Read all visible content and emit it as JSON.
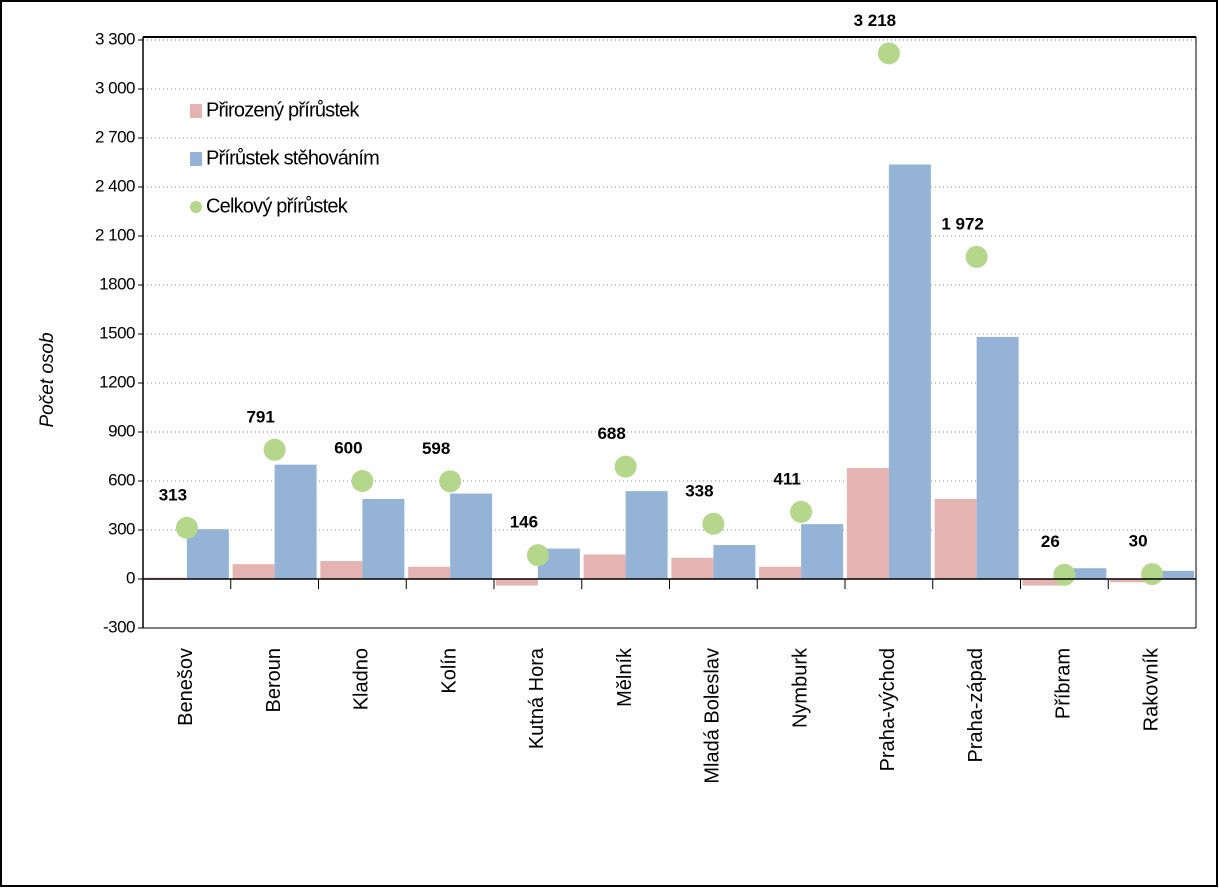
{
  "chart_data": {
    "type": "bar",
    "y_label": "Počet osob",
    "categories": [
      "Benešov",
      "Beroun",
      "Kladno",
      "Kolín",
      "Kutná Hora",
      "Mělník",
      "Mladá Boleslav",
      "Nymburk",
      "Praha-východ",
      "Praha-západ",
      "Příbram",
      "Rakovník"
    ],
    "series": [
      {
        "name": "Přirozený přírůstek",
        "color": "#e6b3b3",
        "values": [
          8,
          91,
          110,
          75,
          -40,
          150,
          130,
          75,
          680,
          490,
          -40,
          -20
        ]
      },
      {
        "name": "Přírůstek stěhováním",
        "color": "#95b3d7",
        "values": [
          305,
          700,
          490,
          523,
          186,
          538,
          208,
          336,
          2538,
          1482,
          66,
          50
        ]
      },
      {
        "name": "Celkový přírůstek",
        "type": "scatter",
        "color": "#b5d78b",
        "values": [
          313,
          791,
          600,
          598,
          146,
          688,
          338,
          411,
          3218,
          1972,
          26,
          30
        ],
        "value_labels": [
          "313",
          "791",
          "600",
          "598",
          "146",
          "688",
          "338",
          "411",
          "3 218",
          "1 972",
          "26",
          "30"
        ]
      }
    ],
    "ylim": [
      -300,
      3300
    ],
    "yticks": [
      -300,
      0,
      300,
      600,
      900,
      {
        "value": 1200,
        "label": "1200"
      },
      {
        "value": 1500,
        "label": "1500"
      },
      {
        "value": 1800,
        "label": "1800"
      },
      {
        "value": 2100,
        "label": "2 100"
      },
      {
        "value": 2400,
        "label": "2 400"
      },
      {
        "value": 2700,
        "label": "2 700"
      },
      {
        "value": 3000,
        "label": "3 000"
      },
      {
        "value": 3300,
        "label": "3 300"
      }
    ],
    "grid": true,
    "legend": "top-left"
  }
}
